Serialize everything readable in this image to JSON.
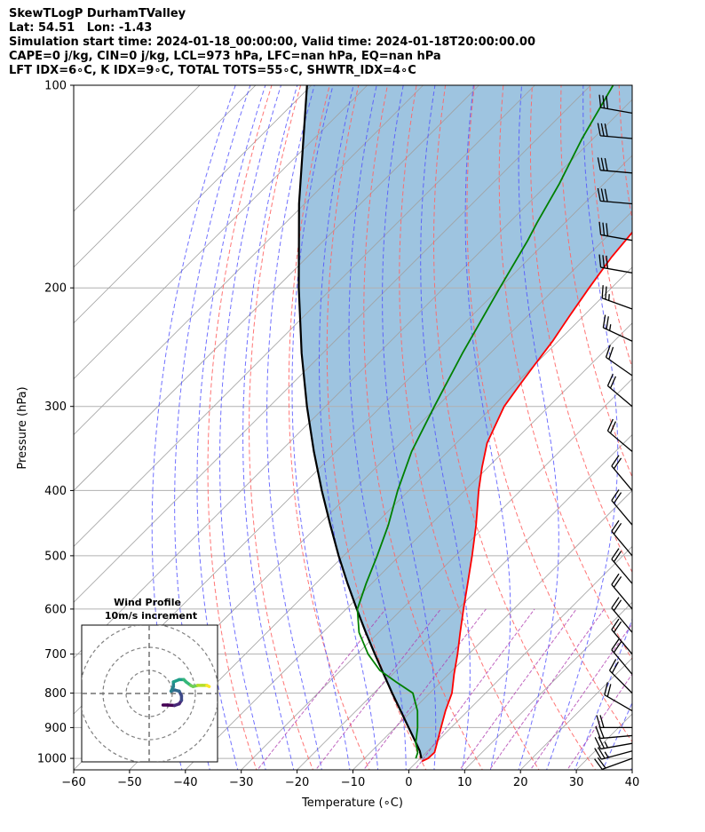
{
  "header": {
    "lines": [
      "SkewTLogP DurhamTValley",
      "Lat: 54.51   Lon: -1.43",
      "Simulation start time: 2024-01-18_00:00:00, Valid time: 2024-01-18T20:00:00.00",
      "CAPE=0 j/kg, CIN=0 j/kg, LCL=973 hPa, LFC=nan hPa, EQ=nan hPa",
      "LFT IDX=6∘C, K IDX=9∘C, TOTAL TOTS=55∘C, SHWTR_IDX=4∘C"
    ]
  },
  "chart_data": {
    "type": "skewt",
    "xlabel": "Temperature (∘C)",
    "ylabel": "Pressure (hPa)",
    "xlim": [
      -60,
      40
    ],
    "ylim": [
      1040,
      100
    ],
    "x_ticks": [
      -60,
      -50,
      -40,
      -30,
      -20,
      -10,
      0,
      10,
      20,
      30,
      40
    ],
    "y_ticks": [
      100,
      200,
      300,
      400,
      500,
      600,
      700,
      800,
      900,
      1000
    ],
    "grid": true,
    "temperature_profile": [
      [
        1010,
        0.8
      ],
      [
        1000,
        1.4
      ],
      [
        980,
        1.5
      ],
      [
        950,
        0.3
      ],
      [
        900,
        -1.8
      ],
      [
        850,
        -4.0
      ],
      [
        800,
        -6.0
      ],
      [
        750,
        -9.0
      ],
      [
        700,
        -12.0
      ],
      [
        650,
        -15.4
      ],
      [
        600,
        -19.0
      ],
      [
        550,
        -22.8
      ],
      [
        500,
        -27.0
      ],
      [
        450,
        -31.8
      ],
      [
        400,
        -37.5
      ],
      [
        370,
        -41.0
      ],
      [
        340,
        -44.5
      ],
      [
        300,
        -48.0
      ],
      [
        280,
        -49.0
      ],
      [
        260,
        -50.0
      ],
      [
        240,
        -51.0
      ],
      [
        220,
        -52.5
      ],
      [
        200,
        -54.0
      ],
      [
        180,
        -55.5
      ],
      [
        160,
        -56.5
      ],
      [
        150,
        -57.0
      ],
      [
        130,
        -58.0
      ],
      [
        115,
        -58.5
      ],
      [
        100,
        -59.0
      ]
    ],
    "dewpoint_profile": [
      [
        1000,
        -0.8
      ],
      [
        980,
        -1.5
      ],
      [
        950,
        -3.5
      ],
      [
        900,
        -6.0
      ],
      [
        850,
        -9.0
      ],
      [
        800,
        -13.0
      ],
      [
        770,
        -18.0
      ],
      [
        740,
        -23.0
      ],
      [
        700,
        -28.0
      ],
      [
        650,
        -33.5
      ],
      [
        600,
        -38.0
      ],
      [
        550,
        -41.0
      ],
      [
        500,
        -44.0
      ],
      [
        450,
        -47.5
      ],
      [
        400,
        -52.0
      ],
      [
        350,
        -56.5
      ],
      [
        300,
        -60.5
      ],
      [
        250,
        -65.0
      ],
      [
        200,
        -70.0
      ],
      [
        170,
        -73.5
      ],
      [
        160,
        -75.0
      ],
      [
        140,
        -78.0
      ],
      [
        120,
        -82.0
      ],
      [
        100,
        -86.0
      ]
    ],
    "parcel_profile": [
      [
        1000,
        0.2
      ],
      [
        975,
        -1.4
      ],
      [
        950,
        -3.4
      ],
      [
        900,
        -7.6
      ],
      [
        850,
        -12.0
      ],
      [
        800,
        -16.7
      ],
      [
        750,
        -21.6
      ],
      [
        700,
        -26.8
      ],
      [
        650,
        -32.3
      ],
      [
        600,
        -38.1
      ],
      [
        550,
        -44.3
      ],
      [
        500,
        -50.9
      ],
      [
        450,
        -57.9
      ],
      [
        400,
        -65.6
      ],
      [
        350,
        -74.0
      ],
      [
        300,
        -83.3
      ],
      [
        250,
        -93.8
      ],
      [
        200,
        -106.0
      ],
      [
        150,
        -121.0
      ],
      [
        100,
        -140.8
      ]
    ],
    "wind_barbs": [
      {
        "p": 1000,
        "speed_kt": 20,
        "dir": 250
      },
      {
        "p": 975,
        "speed_kt": 25,
        "dir": 255
      },
      {
        "p": 950,
        "speed_kt": 25,
        "dir": 260
      },
      {
        "p": 925,
        "speed_kt": 20,
        "dir": 265
      },
      {
        "p": 900,
        "speed_kt": 20,
        "dir": 270
      },
      {
        "p": 850,
        "speed_kt": 20,
        "dir": 300
      },
      {
        "p": 800,
        "speed_kt": 20,
        "dir": 315
      },
      {
        "p": 750,
        "speed_kt": 20,
        "dir": 320
      },
      {
        "p": 700,
        "speed_kt": 20,
        "dir": 320
      },
      {
        "p": 650,
        "speed_kt": 20,
        "dir": 320
      },
      {
        "p": 600,
        "speed_kt": 20,
        "dir": 320
      },
      {
        "p": 550,
        "speed_kt": 20,
        "dir": 320
      },
      {
        "p": 500,
        "speed_kt": 20,
        "dir": 320
      },
      {
        "p": 450,
        "speed_kt": 20,
        "dir": 320
      },
      {
        "p": 400,
        "speed_kt": 20,
        "dir": 320
      },
      {
        "p": 350,
        "speed_kt": 20,
        "dir": 310
      },
      {
        "p": 300,
        "speed_kt": 20,
        "dir": 310
      },
      {
        "p": 270,
        "speed_kt": 20,
        "dir": 305
      },
      {
        "p": 240,
        "speed_kt": 25,
        "dir": 295
      },
      {
        "p": 215,
        "speed_kt": 25,
        "dir": 290
      },
      {
        "p": 190,
        "speed_kt": 30,
        "dir": 280
      },
      {
        "p": 170,
        "speed_kt": 30,
        "dir": 280
      },
      {
        "p": 150,
        "speed_kt": 30,
        "dir": 275
      },
      {
        "p": 135,
        "speed_kt": 30,
        "dir": 275
      },
      {
        "p": 120,
        "speed_kt": 30,
        "dir": 275
      },
      {
        "p": 110,
        "speed_kt": 30,
        "dir": 280
      }
    ],
    "hodograph": {
      "title": "Wind Profile",
      "subtitle": "10m/s increment",
      "rings_ms": [
        10,
        20,
        30
      ],
      "points_uv": [
        [
          6,
          5
        ],
        [
          8,
          5
        ],
        [
          11,
          5.2
        ],
        [
          13,
          4.5
        ],
        [
          14,
          3
        ],
        [
          14,
          1
        ],
        [
          13,
          -1
        ],
        [
          11,
          -1.5
        ],
        [
          9.5,
          -1
        ],
        [
          10.5,
          -3
        ],
        [
          10.5,
          -5
        ],
        [
          13,
          -6
        ],
        [
          15,
          -6
        ],
        [
          16,
          -5
        ],
        [
          18,
          -3.5
        ],
        [
          19,
          -3
        ],
        [
          21,
          -3.5
        ],
        [
          23,
          -3.5
        ],
        [
          25,
          -3.5
        ],
        [
          26,
          -3
        ]
      ],
      "colormap": [
        "#440154",
        "#482878",
        "#3e4a89",
        "#31688e",
        "#26828e",
        "#1f9e89",
        "#35b779",
        "#6ece58",
        "#b5de2b",
        "#fde725"
      ]
    },
    "colors": {
      "temperature": "#ff0000",
      "dewpoint": "#008000",
      "parcel": "#000000",
      "cape_shade": "#9ec4e0",
      "dry_adiabat": "#ff6666",
      "moist_adiabat": "#4d4dff",
      "mixing_ratio": "#b040b0",
      "isotherm": "#a0a0a0",
      "isobar": "#b0b0b0"
    }
  }
}
